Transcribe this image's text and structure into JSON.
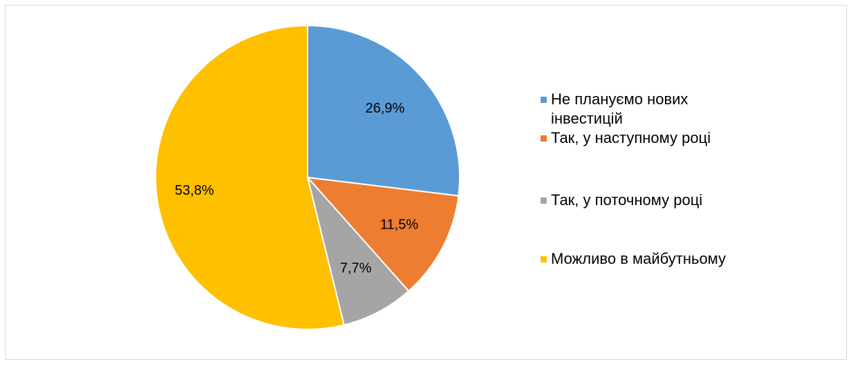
{
  "chart_data": {
    "type": "pie",
    "categories": [
      "Не плануємо нових інвестицій",
      "Так, у наступному році",
      "Так, у поточному році",
      "Можливо в майбутньому"
    ],
    "values": [
      26.9,
      11.5,
      7.7,
      53.8
    ],
    "value_labels": [
      "26,9%",
      "11,5%",
      "7,7%",
      "53,8%"
    ],
    "colors": [
      "#5b9bd5",
      "#ed7d31",
      "#a5a5a5",
      "#ffc000"
    ],
    "legend": "right"
  }
}
